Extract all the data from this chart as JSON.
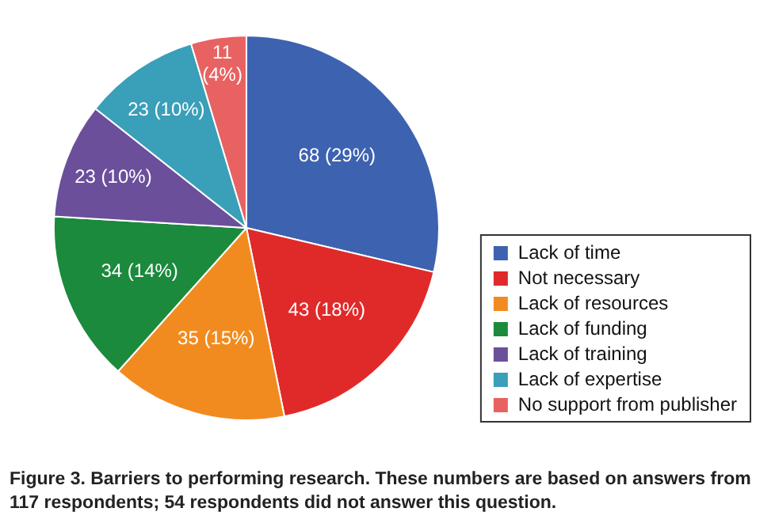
{
  "chart_data": {
    "type": "pie",
    "categories": [
      "Lack of time",
      "Not necessary",
      "Lack of resources",
      "Lack of funding",
      "Lack of training",
      "Lack of expertise",
      "No support from publisher"
    ],
    "values": [
      68,
      43,
      35,
      34,
      23,
      23,
      11
    ],
    "value_labels": [
      "68 (29%)",
      "43 (18%)",
      "35 (15%)",
      "34 (14%)",
      "23 (10%)",
      "23 (10%)",
      "11\n(4%)"
    ],
    "colors": [
      "#3d62b0",
      "#e02a2a",
      "#f28b1f",
      "#1b8a3c",
      "#6b4f9b",
      "#3a9fb8",
      "#e86262"
    ],
    "legend": "bottom right",
    "annotations": [
      "Figure 3.  Barriers to performing research. These numbers are based on answers from 117 respondents; 54 respondents did not answer this question."
    ]
  }
}
